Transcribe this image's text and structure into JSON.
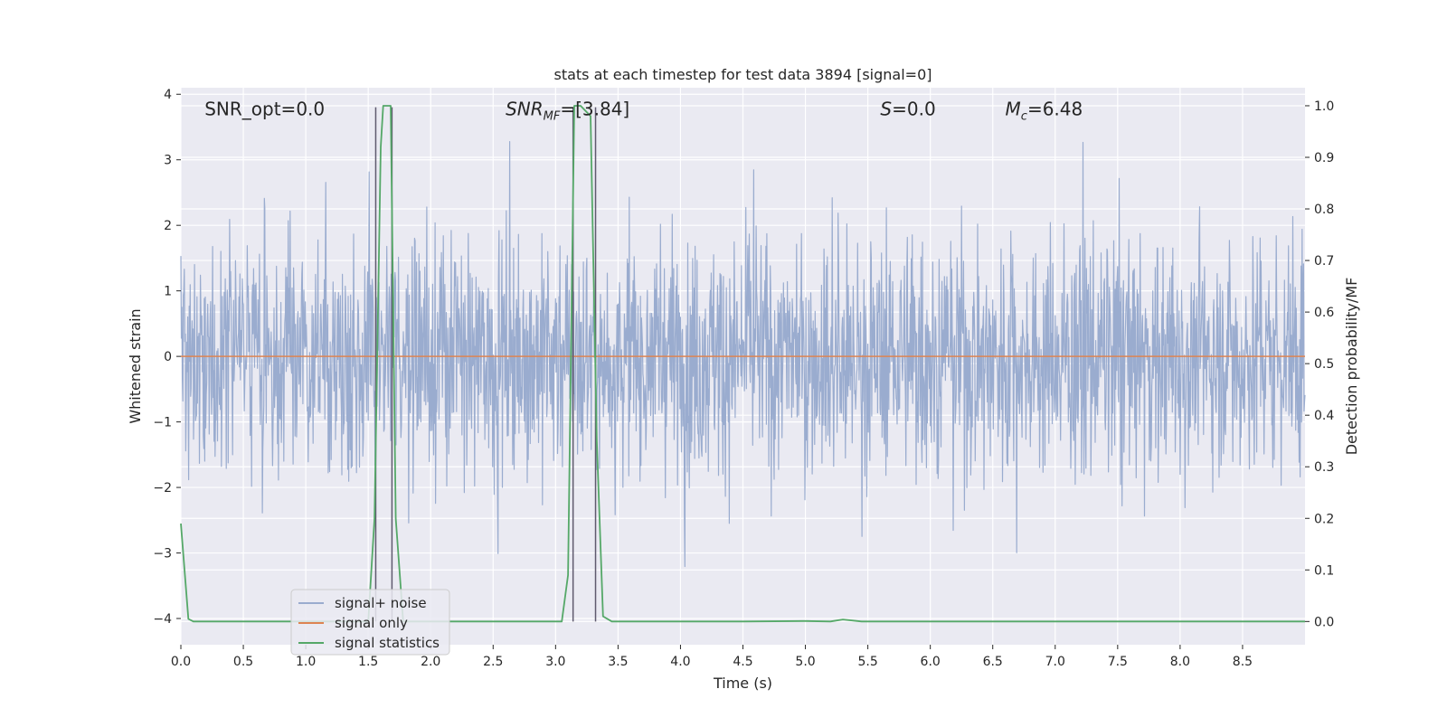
{
  "chart_data": {
    "type": "line",
    "title": "stats at each timestep for test data 3894 [signal=0]",
    "xlabel": "Time (s)",
    "ylabel": "Whitened strain",
    "y2label": "Detection probability/MF",
    "xlim": [
      0.0,
      9.0
    ],
    "ylim": [
      -4.4,
      4.1
    ],
    "y2lim": [
      -0.045,
      1.035
    ],
    "grid": true,
    "legend_location": "lower-left",
    "x_ticks": [
      "0.0",
      "0.5",
      "1.0",
      "1.5",
      "2.0",
      "2.5",
      "3.0",
      "3.5",
      "4.0",
      "4.5",
      "5.0",
      "5.5",
      "6.0",
      "6.5",
      "7.0",
      "7.5",
      "8.0",
      "8.5"
    ],
    "x_tick_values": [
      0.0,
      0.5,
      1.0,
      1.5,
      2.0,
      2.5,
      3.0,
      3.5,
      4.0,
      4.5,
      5.0,
      5.5,
      6.0,
      6.5,
      7.0,
      7.5,
      8.0,
      8.5
    ],
    "y_ticks": [
      "−4",
      "−3",
      "−2",
      "−1",
      "0",
      "1",
      "2",
      "3",
      "4"
    ],
    "y_tick_values": [
      -4,
      -3,
      -2,
      -1,
      0,
      1,
      2,
      3,
      4
    ],
    "y2_ticks": [
      "0.0",
      "0.1",
      "0.2",
      "0.3",
      "0.4",
      "0.5",
      "0.6",
      "0.7",
      "0.8",
      "0.9",
      "1.0"
    ],
    "y2_tick_values": [
      0.0,
      0.1,
      0.2,
      0.3,
      0.4,
      0.5,
      0.6,
      0.7,
      0.8,
      0.9,
      1.0
    ],
    "annotations": {
      "snr_opt": "SNR_opt=0.0",
      "snr_mf_base": "SNR",
      "snr_mf_sub": "MF",
      "snr_mf_value": "=[3.84]",
      "s_base": "S",
      "s_value": "=0.0",
      "mc_base": "M",
      "mc_sub": "c",
      "mc_value": "=6.48"
    },
    "series": [
      {
        "name": "signal+ noise",
        "axis": "left",
        "color": "#9aaccf",
        "description": "whitened strain noise, roughly within ±2 with spikes up to about ±3.8",
        "sample_rate_per_s": 256
      },
      {
        "name": "signal only",
        "axis": "left",
        "color": "#dd8452",
        "x": [
          0.0,
          9.0
        ],
        "y": [
          0.0,
          0.0
        ]
      },
      {
        "name": "signal statistics",
        "axis": "right",
        "color": "#55a868",
        "x": [
          0.0,
          0.06,
          0.1,
          0.2,
          1.5,
          1.55,
          1.6,
          1.62,
          1.68,
          1.72,
          1.78,
          3.05,
          3.1,
          3.15,
          3.2,
          3.28,
          3.33,
          3.38,
          3.45,
          4.5,
          5.0,
          5.2,
          5.3,
          5.45,
          9.0
        ],
        "y": [
          0.19,
          0.005,
          0.0,
          0.0,
          0.0,
          0.2,
          0.92,
          1.0,
          1.0,
          0.2,
          0.0,
          0.0,
          0.09,
          1.0,
          1.0,
          0.98,
          0.35,
          0.01,
          0.0,
          0.0,
          0.001,
          0.0,
          0.004,
          0.0,
          0.0
        ]
      }
    ],
    "event_markers": {
      "color": "#5f5a6e",
      "x": [
        1.56,
        1.69,
        3.14,
        3.32
      ],
      "y_top": 0.997
    }
  }
}
